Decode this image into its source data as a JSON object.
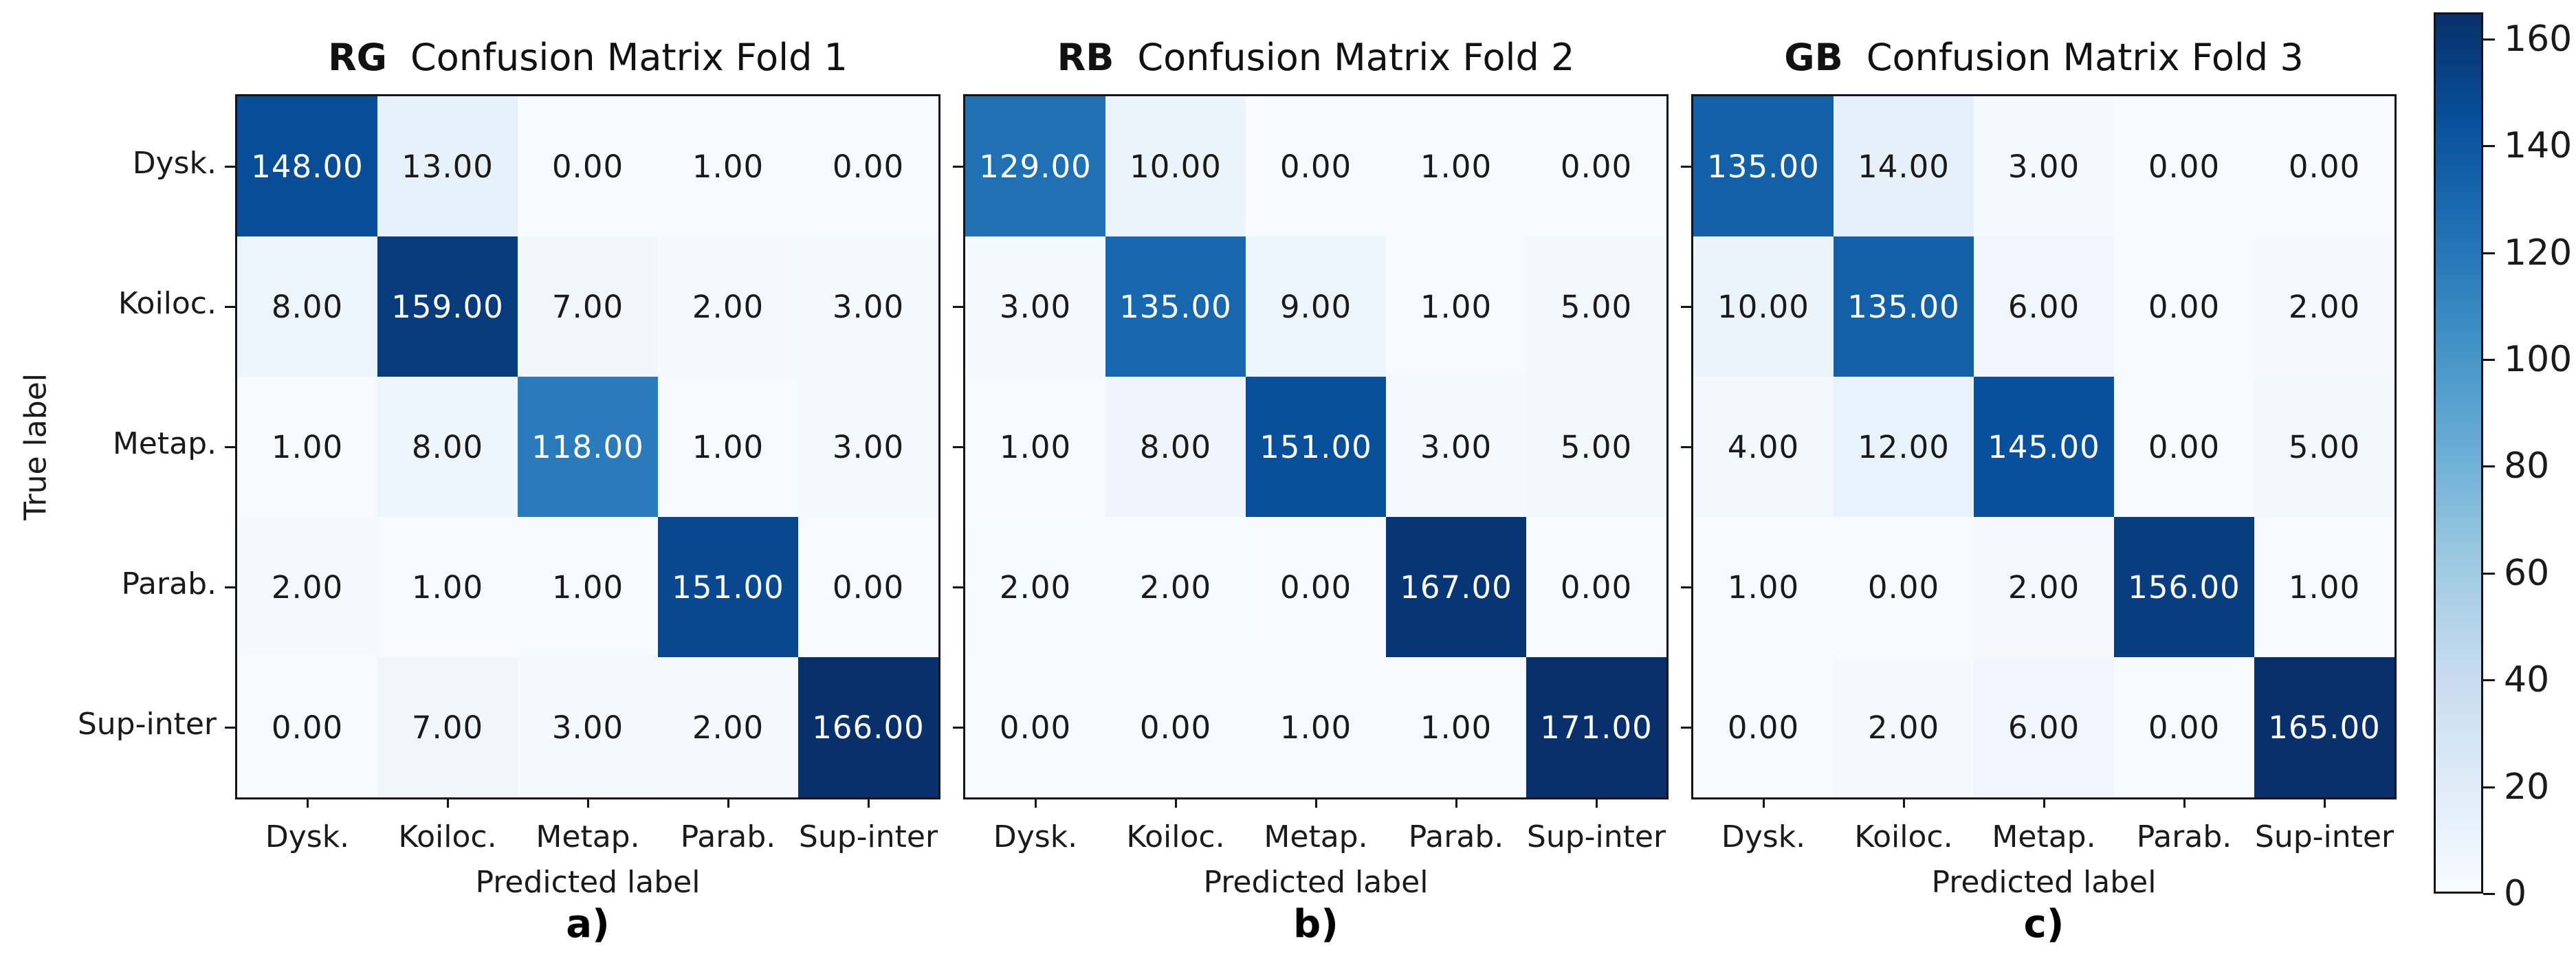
{
  "chart_data": {
    "type": "heatmap",
    "subtype": "confusion-matrix-grid",
    "classes": [
      "Dysk.",
      "Koiloc.",
      "Metap.",
      "Parab.",
      "Sup-inter"
    ],
    "xlabel": "Predicted label",
    "ylabel": "True label",
    "value_decimals": 2,
    "subplots": [
      {
        "title_prefix": "RG",
        "title": "Confusion Matrix Fold 1",
        "caption": "a)",
        "matrix": [
          [
            148,
            13,
            0,
            1,
            0
          ],
          [
            8,
            159,
            7,
            2,
            3
          ],
          [
            1,
            8,
            118,
            1,
            3
          ],
          [
            2,
            1,
            1,
            151,
            0
          ],
          [
            0,
            7,
            3,
            2,
            166
          ]
        ]
      },
      {
        "title_prefix": "RB",
        "title": "Confusion Matrix Fold 2",
        "caption": "b)",
        "matrix": [
          [
            129,
            10,
            0,
            1,
            0
          ],
          [
            3,
            135,
            9,
            1,
            5
          ],
          [
            1,
            8,
            151,
            3,
            5
          ],
          [
            2,
            2,
            0,
            167,
            0
          ],
          [
            0,
            0,
            1,
            1,
            171
          ]
        ]
      },
      {
        "title_prefix": "GB",
        "title": "Confusion Matrix Fold 3",
        "caption": "c)",
        "matrix": [
          [
            135,
            14,
            3,
            0,
            0
          ],
          [
            10,
            135,
            6,
            0,
            2
          ],
          [
            4,
            12,
            145,
            0,
            5
          ],
          [
            1,
            0,
            2,
            156,
            1
          ],
          [
            0,
            2,
            6,
            0,
            165
          ]
        ]
      }
    ],
    "colorbar": {
      "vmin": 0,
      "vmax": 165,
      "ticks": [
        0,
        20,
        40,
        60,
        80,
        100,
        120,
        140,
        160
      ]
    },
    "colors": {
      "cmap": "Blues",
      "cmap_stops": [
        "#f7fbff",
        "#deebf7",
        "#c6dbef",
        "#9ecae1",
        "#6baed6",
        "#4292c6",
        "#2171b5",
        "#08519c",
        "#08306b"
      ],
      "text_dark": "#1a1a1a",
      "text_light": "#ffffff",
      "spine": "#13131f",
      "background": "#ffffff"
    },
    "legend_position": "right-colorbar",
    "grid": false
  }
}
